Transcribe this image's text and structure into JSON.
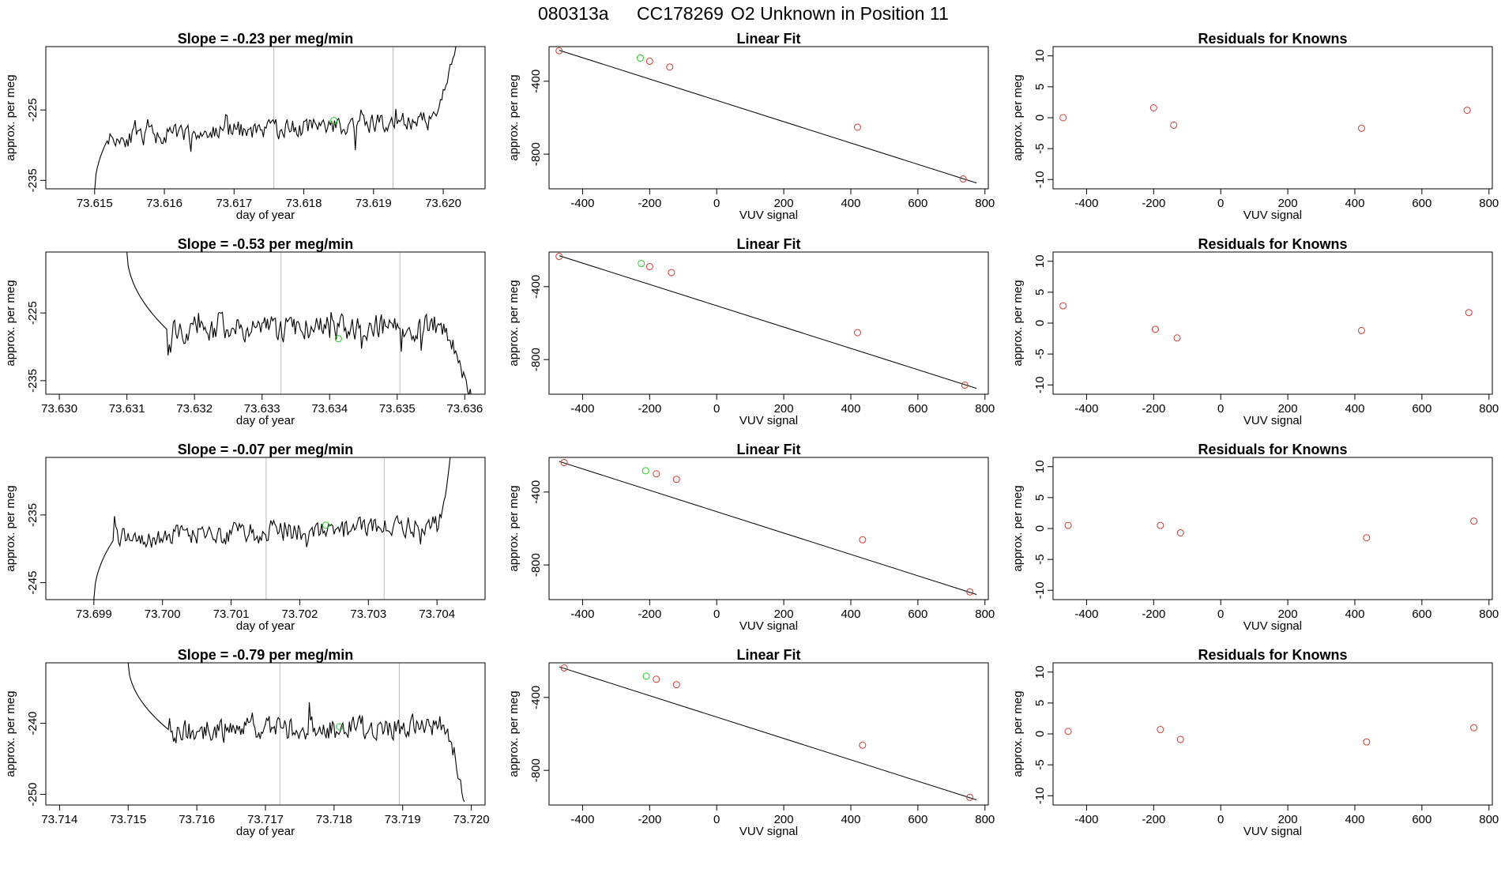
{
  "figure": {
    "title_parts": [
      "080313a",
      "CC178269",
      "O2 Unknown in Position  11"
    ]
  },
  "colors": {
    "line": "#000000",
    "known_point": "#cd3b33",
    "unknown_point": "#22cc22",
    "marker_vline": "#bdbdbd",
    "frame": "#000000"
  },
  "chart_data": [
    {
      "type": "line",
      "row": 1,
      "title": "Slope =  -0.23  per meg/min",
      "xlabel": "day of year",
      "ylabel": "approx. per meg",
      "xlim": [
        73.6143,
        73.6206
      ],
      "ylim": [
        -236.2,
        -216.0
      ],
      "xticks": [
        73.615,
        73.616,
        73.617,
        73.618,
        73.619,
        73.62
      ],
      "xtick_labels": [
        "73.615",
        "73.616",
        "73.617",
        "73.618",
        "73.619",
        "73.620"
      ],
      "yticks": [
        -225,
        -235
      ],
      "ytick_labels": [
        "-225",
        "-235"
      ],
      "series_x": [
        73.615,
        73.6202
      ],
      "series_y": [
        -236.5,
        -215.0
      ],
      "start_val": -236.5,
      "plateau_from": 73.6152,
      "plateau_to": 73.6198,
      "level_start": -229.0,
      "level_end": -226.5,
      "noise": 1.6,
      "seed": 11,
      "end_rise": -215.0,
      "vlines": [
        73.61757,
        73.61928
      ],
      "highlight": {
        "x": 73.61843,
        "y": -226.5
      }
    },
    {
      "type": "scatter",
      "row": 1,
      "title": "Linear Fit",
      "xlabel": "VUV signal",
      "ylabel": "approx. per meg",
      "xlim": [
        -500,
        810
      ],
      "ylim": [
        -990,
        -210
      ],
      "xticks": [
        -400,
        -200,
        0,
        200,
        400,
        600,
        800
      ],
      "xtick_labels": [
        "-400",
        "-200",
        "0",
        "200",
        "400",
        "600",
        "800"
      ],
      "yticks": [
        -400,
        -800
      ],
      "ytick_labels": [
        "-400",
        "-800"
      ],
      "fit_line": {
        "x": [
          -470,
          775
        ],
        "y": [
          -230,
          -958
        ]
      },
      "known_points": {
        "x": [
          -470,
          -200,
          -140,
          420,
          735
        ],
        "y": [
          -233,
          -290,
          -322,
          -652,
          -936
        ]
      },
      "unknown_points": {
        "x": [
          -228
        ],
        "y": [
          -273
        ]
      }
    },
    {
      "type": "scatter",
      "row": 1,
      "title": "Residuals for Knowns",
      "xlabel": "VUV signal",
      "ylabel": "approx. per meg",
      "xlim": [
        -500,
        810
      ],
      "ylim": [
        -11.5,
        11.5
      ],
      "xticks": [
        -400,
        -200,
        0,
        200,
        400,
        600,
        800
      ],
      "xtick_labels": [
        "-400",
        "-200",
        "0",
        "200",
        "400",
        "600",
        "800"
      ],
      "yticks": [
        10,
        5,
        0,
        -5,
        -10
      ],
      "ytick_labels": [
        "10",
        "5",
        "0",
        "-5",
        "-10"
      ],
      "known_points": {
        "x": [
          -470,
          -200,
          -140,
          420,
          735
        ],
        "y": [
          0.0,
          1.6,
          -1.2,
          -1.7,
          1.2
        ]
      }
    },
    {
      "type": "line",
      "row": 2,
      "title": "Slope =  -0.53  per meg/min",
      "xlabel": "day of year",
      "ylabel": "approx. per meg",
      "xlim": [
        73.6298,
        73.6363
      ],
      "ylim": [
        -237.0,
        -216.0
      ],
      "xticks": [
        73.63,
        73.631,
        73.632,
        73.633,
        73.634,
        73.635,
        73.636
      ],
      "xtick_labels": [
        "73.630",
        "73.631",
        "73.632",
        "73.633",
        "73.634",
        "73.635",
        "73.636"
      ],
      "yticks": [
        -225,
        -235
      ],
      "ytick_labels": [
        "-225",
        "-235"
      ],
      "series_x": [
        73.631,
        73.6361
      ],
      "series_y": [
        -216.0,
        -238.0
      ],
      "start_val": -216.0,
      "plateau_from": 73.6316,
      "plateau_to": 73.6356,
      "level_start": -227.5,
      "level_end": -227.0,
      "noise": 2.2,
      "seed": 23,
      "end_rise": -238.0,
      "vlines": [
        73.63328,
        73.63504
      ],
      "highlight": {
        "x": 73.63413,
        "y": -228.8
      }
    },
    {
      "type": "scatter",
      "row": 2,
      "title": "Linear Fit",
      "xlabel": "VUV signal",
      "ylabel": "approx. per meg",
      "xlim": [
        -500,
        810
      ],
      "ylim": [
        -990,
        -210
      ],
      "xticks": [
        -400,
        -200,
        0,
        200,
        400,
        600,
        800
      ],
      "xtick_labels": [
        "-400",
        "-200",
        "0",
        "200",
        "400",
        "600",
        "800"
      ],
      "yticks": [
        -400,
        -800
      ],
      "ytick_labels": [
        "-400",
        "-800"
      ],
      "fit_line": {
        "x": [
          -470,
          775
        ],
        "y": [
          -230,
          -958
        ]
      },
      "known_points": {
        "x": [
          -470,
          -200,
          -135,
          420,
          740
        ],
        "y": [
          -234,
          -290,
          -323,
          -652,
          -940
        ]
      },
      "unknown_points": {
        "x": [
          -225
        ],
        "y": [
          -273
        ]
      }
    },
    {
      "type": "scatter",
      "row": 2,
      "title": "Residuals for Knowns",
      "xlabel": "VUV signal",
      "ylabel": "approx. per meg",
      "xlim": [
        -500,
        810
      ],
      "ylim": [
        -11.5,
        11.5
      ],
      "xticks": [
        -400,
        -200,
        0,
        200,
        400,
        600,
        800
      ],
      "xtick_labels": [
        "-400",
        "-200",
        "0",
        "200",
        "400",
        "600",
        "800"
      ],
      "yticks": [
        10,
        5,
        0,
        -5,
        -10
      ],
      "ytick_labels": [
        "10",
        "5",
        "0",
        "-5",
        "-10"
      ],
      "known_points": {
        "x": [
          -470,
          -195,
          -130,
          420,
          740
        ],
        "y": [
          2.8,
          -1.0,
          -2.4,
          -1.2,
          1.7
        ]
      }
    },
    {
      "type": "line",
      "row": 3,
      "title": "Slope =  -0.07  per meg/min",
      "xlabel": "day of year",
      "ylabel": "approx. per meg",
      "xlim": [
        73.6983,
        73.7047
      ],
      "ylim": [
        -247.5,
        -226.5
      ],
      "xticks": [
        73.699,
        73.7,
        73.701,
        73.702,
        73.703,
        73.704
      ],
      "xtick_labels": [
        "73.699",
        "73.700",
        "73.701",
        "73.702",
        "73.703",
        "73.704"
      ],
      "yticks": [
        -235,
        -245
      ],
      "ytick_labels": [
        "-235",
        "-245"
      ],
      "series_x": [
        73.699,
        73.7042
      ],
      "series_y": [
        -247.5,
        -226.0
      ],
      "start_val": -247.5,
      "plateau_from": 73.6993,
      "plateau_to": 73.704,
      "level_start": -238.5,
      "level_end": -236.5,
      "noise": 1.8,
      "seed": 37,
      "end_rise": -226.0,
      "vlines": [
        73.70151,
        73.70323
      ],
      "highlight": {
        "x": 73.70238,
        "y": -236.5
      }
    },
    {
      "type": "scatter",
      "row": 3,
      "title": "Linear Fit",
      "xlabel": "VUV signal",
      "ylabel": "approx. per meg",
      "xlim": [
        -500,
        810
      ],
      "ylim": [
        -990,
        -210
      ],
      "xticks": [
        -400,
        -200,
        0,
        200,
        400,
        600,
        800
      ],
      "xtick_labels": [
        "-400",
        "-200",
        "0",
        "200",
        "400",
        "600",
        "800"
      ],
      "yticks": [
        -400,
        -800
      ],
      "ytick_labels": [
        "-400",
        "-800"
      ],
      "fit_line": {
        "x": [
          -470,
          775
        ],
        "y": [
          -232,
          -962
        ]
      },
      "known_points": {
        "x": [
          -455,
          -180,
          -120,
          435,
          755
        ],
        "y": [
          -238,
          -300,
          -330,
          -662,
          -948
        ]
      },
      "unknown_points": {
        "x": [
          -212
        ],
        "y": [
          -283
        ]
      }
    },
    {
      "type": "scatter",
      "row": 3,
      "title": "Residuals for Knowns",
      "xlabel": "VUV signal",
      "ylabel": "approx. per meg",
      "xlim": [
        -500,
        810
      ],
      "ylim": [
        -11.5,
        11.5
      ],
      "xticks": [
        -400,
        -200,
        0,
        200,
        400,
        600,
        800
      ],
      "xtick_labels": [
        "-400",
        "-200",
        "0",
        "200",
        "400",
        "600",
        "800"
      ],
      "yticks": [
        10,
        5,
        0,
        -5,
        -10
      ],
      "ytick_labels": [
        "10",
        "5",
        "0",
        "-5",
        "-10"
      ],
      "known_points": {
        "x": [
          -455,
          -180,
          -120,
          435,
          755
        ],
        "y": [
          0.5,
          0.5,
          -0.7,
          -1.5,
          1.2
        ]
      }
    },
    {
      "type": "line",
      "row": 4,
      "title": "Slope =  -0.79  per meg/min",
      "xlabel": "day of year",
      "ylabel": "approx. per meg",
      "xlim": [
        73.7138,
        73.7202
      ],
      "ylim": [
        -251.5,
        -231.5
      ],
      "xticks": [
        73.714,
        73.715,
        73.716,
        73.717,
        73.718,
        73.719,
        73.72
      ],
      "xtick_labels": [
        "73.714",
        "73.715",
        "73.716",
        "73.717",
        "73.718",
        "73.719",
        "73.720"
      ],
      "yticks": [
        -240,
        -250
      ],
      "ytick_labels": [
        "-240",
        "-250"
      ],
      "series_x": [
        73.715,
        73.7199
      ],
      "series_y": [
        -231.5,
        -252.0
      ],
      "start_val": -231.5,
      "plateau_from": 73.7156,
      "plateau_to": 73.7196,
      "level_start": -241.0,
      "level_end": -240.5,
      "noise": 2.0,
      "seed": 53,
      "end_rise": -252.0,
      "vlines": [
        73.71721,
        73.71895
      ],
      "highlight": {
        "x": 73.71808,
        "y": -240.5
      }
    },
    {
      "type": "scatter",
      "row": 4,
      "title": "Linear Fit",
      "xlabel": "VUV signal",
      "ylabel": "approx. per meg",
      "xlim": [
        -500,
        810
      ],
      "ylim": [
        -990,
        -210
      ],
      "xticks": [
        -400,
        -200,
        0,
        200,
        400,
        600,
        800
      ],
      "xtick_labels": [
        "-400",
        "-200",
        "0",
        "200",
        "400",
        "600",
        "800"
      ],
      "yticks": [
        -400,
        -800
      ],
      "ytick_labels": [
        "-400",
        "-800"
      ],
      "fit_line": {
        "x": [
          -470,
          775
        ],
        "y": [
          -232,
          -962
        ]
      },
      "known_points": {
        "x": [
          -455,
          -180,
          -120,
          435,
          755
        ],
        "y": [
          -238,
          -300,
          -330,
          -662,
          -948
        ]
      },
      "unknown_points": {
        "x": [
          -210
        ],
        "y": [
          -283
        ]
      }
    },
    {
      "type": "scatter",
      "row": 4,
      "title": "Residuals for Knowns",
      "xlabel": "VUV signal",
      "ylabel": "approx. per meg",
      "xlim": [
        -500,
        810
      ],
      "ylim": [
        -11.5,
        11.5
      ],
      "xticks": [
        -400,
        -200,
        0,
        200,
        400,
        600,
        800
      ],
      "xtick_labels": [
        "-400",
        "-200",
        "0",
        "200",
        "400",
        "600",
        "800"
      ],
      "yticks": [
        10,
        5,
        0,
        -5,
        -10
      ],
      "ytick_labels": [
        "10",
        "5",
        "0",
        "-5",
        "-10"
      ],
      "known_points": {
        "x": [
          -455,
          -180,
          -120,
          435,
          755
        ],
        "y": [
          0.4,
          0.7,
          -0.9,
          -1.3,
          1.0
        ]
      }
    }
  ]
}
